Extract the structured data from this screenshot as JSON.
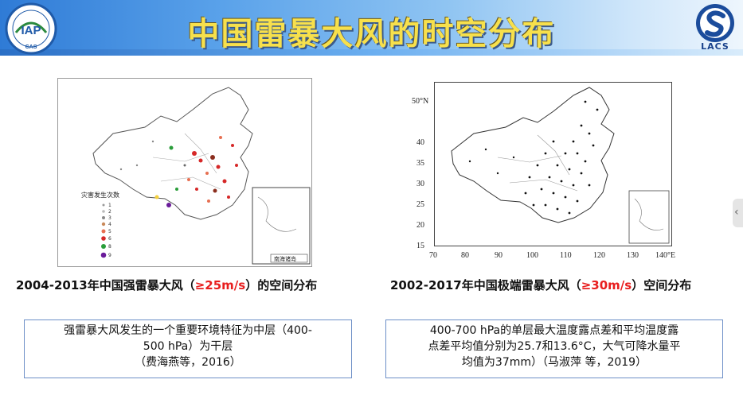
{
  "title": "中国雷暴大风的时空分布",
  "logos": {
    "left_text": "IAP",
    "left_sub": "CAS",
    "right_text": "LACS"
  },
  "left_panel": {
    "legend_title": "灾害发生次数",
    "legend_items": [
      "1",
      "2",
      "3",
      "4",
      "5",
      "6",
      "8",
      "9"
    ],
    "inset_label": "南海诸岛",
    "caption_pre": "2004-2013年中国强雷暴大风（",
    "caption_hi": "≥25m/s",
    "caption_post": "）的空间分布",
    "note_line1": "强雷暴大风发生的一个重要环境特征为中层（400-",
    "note_line2": "500 hPa）为干层",
    "note_line3": "（费海燕等，2016）"
  },
  "right_panel": {
    "y_ticks": [
      "50°N",
      "40",
      "35",
      "30",
      "25",
      "20",
      "15"
    ],
    "x_ticks": [
      "70",
      "80",
      "90",
      "100",
      "110",
      "120",
      "130",
      "140°E"
    ],
    "caption_pre": "2002-2017年中国极端雷暴大风（",
    "caption_hi": "≥30m/s",
    "caption_post": "）空间分布",
    "note_line1": "400-700 hPa的单层最大温度露点差和平均温度露",
    "note_line2": "点差平均值分别为25.7和13.6°C，大气可降水量平",
    "note_line3": "均值为37mm）（马淑萍 等，2019）"
  },
  "colors": {
    "title": "#f7e04c",
    "highlight": "#e81e1e",
    "header": "#2f7bd6"
  },
  "icons": {
    "nav": "chevron-left-icon"
  }
}
